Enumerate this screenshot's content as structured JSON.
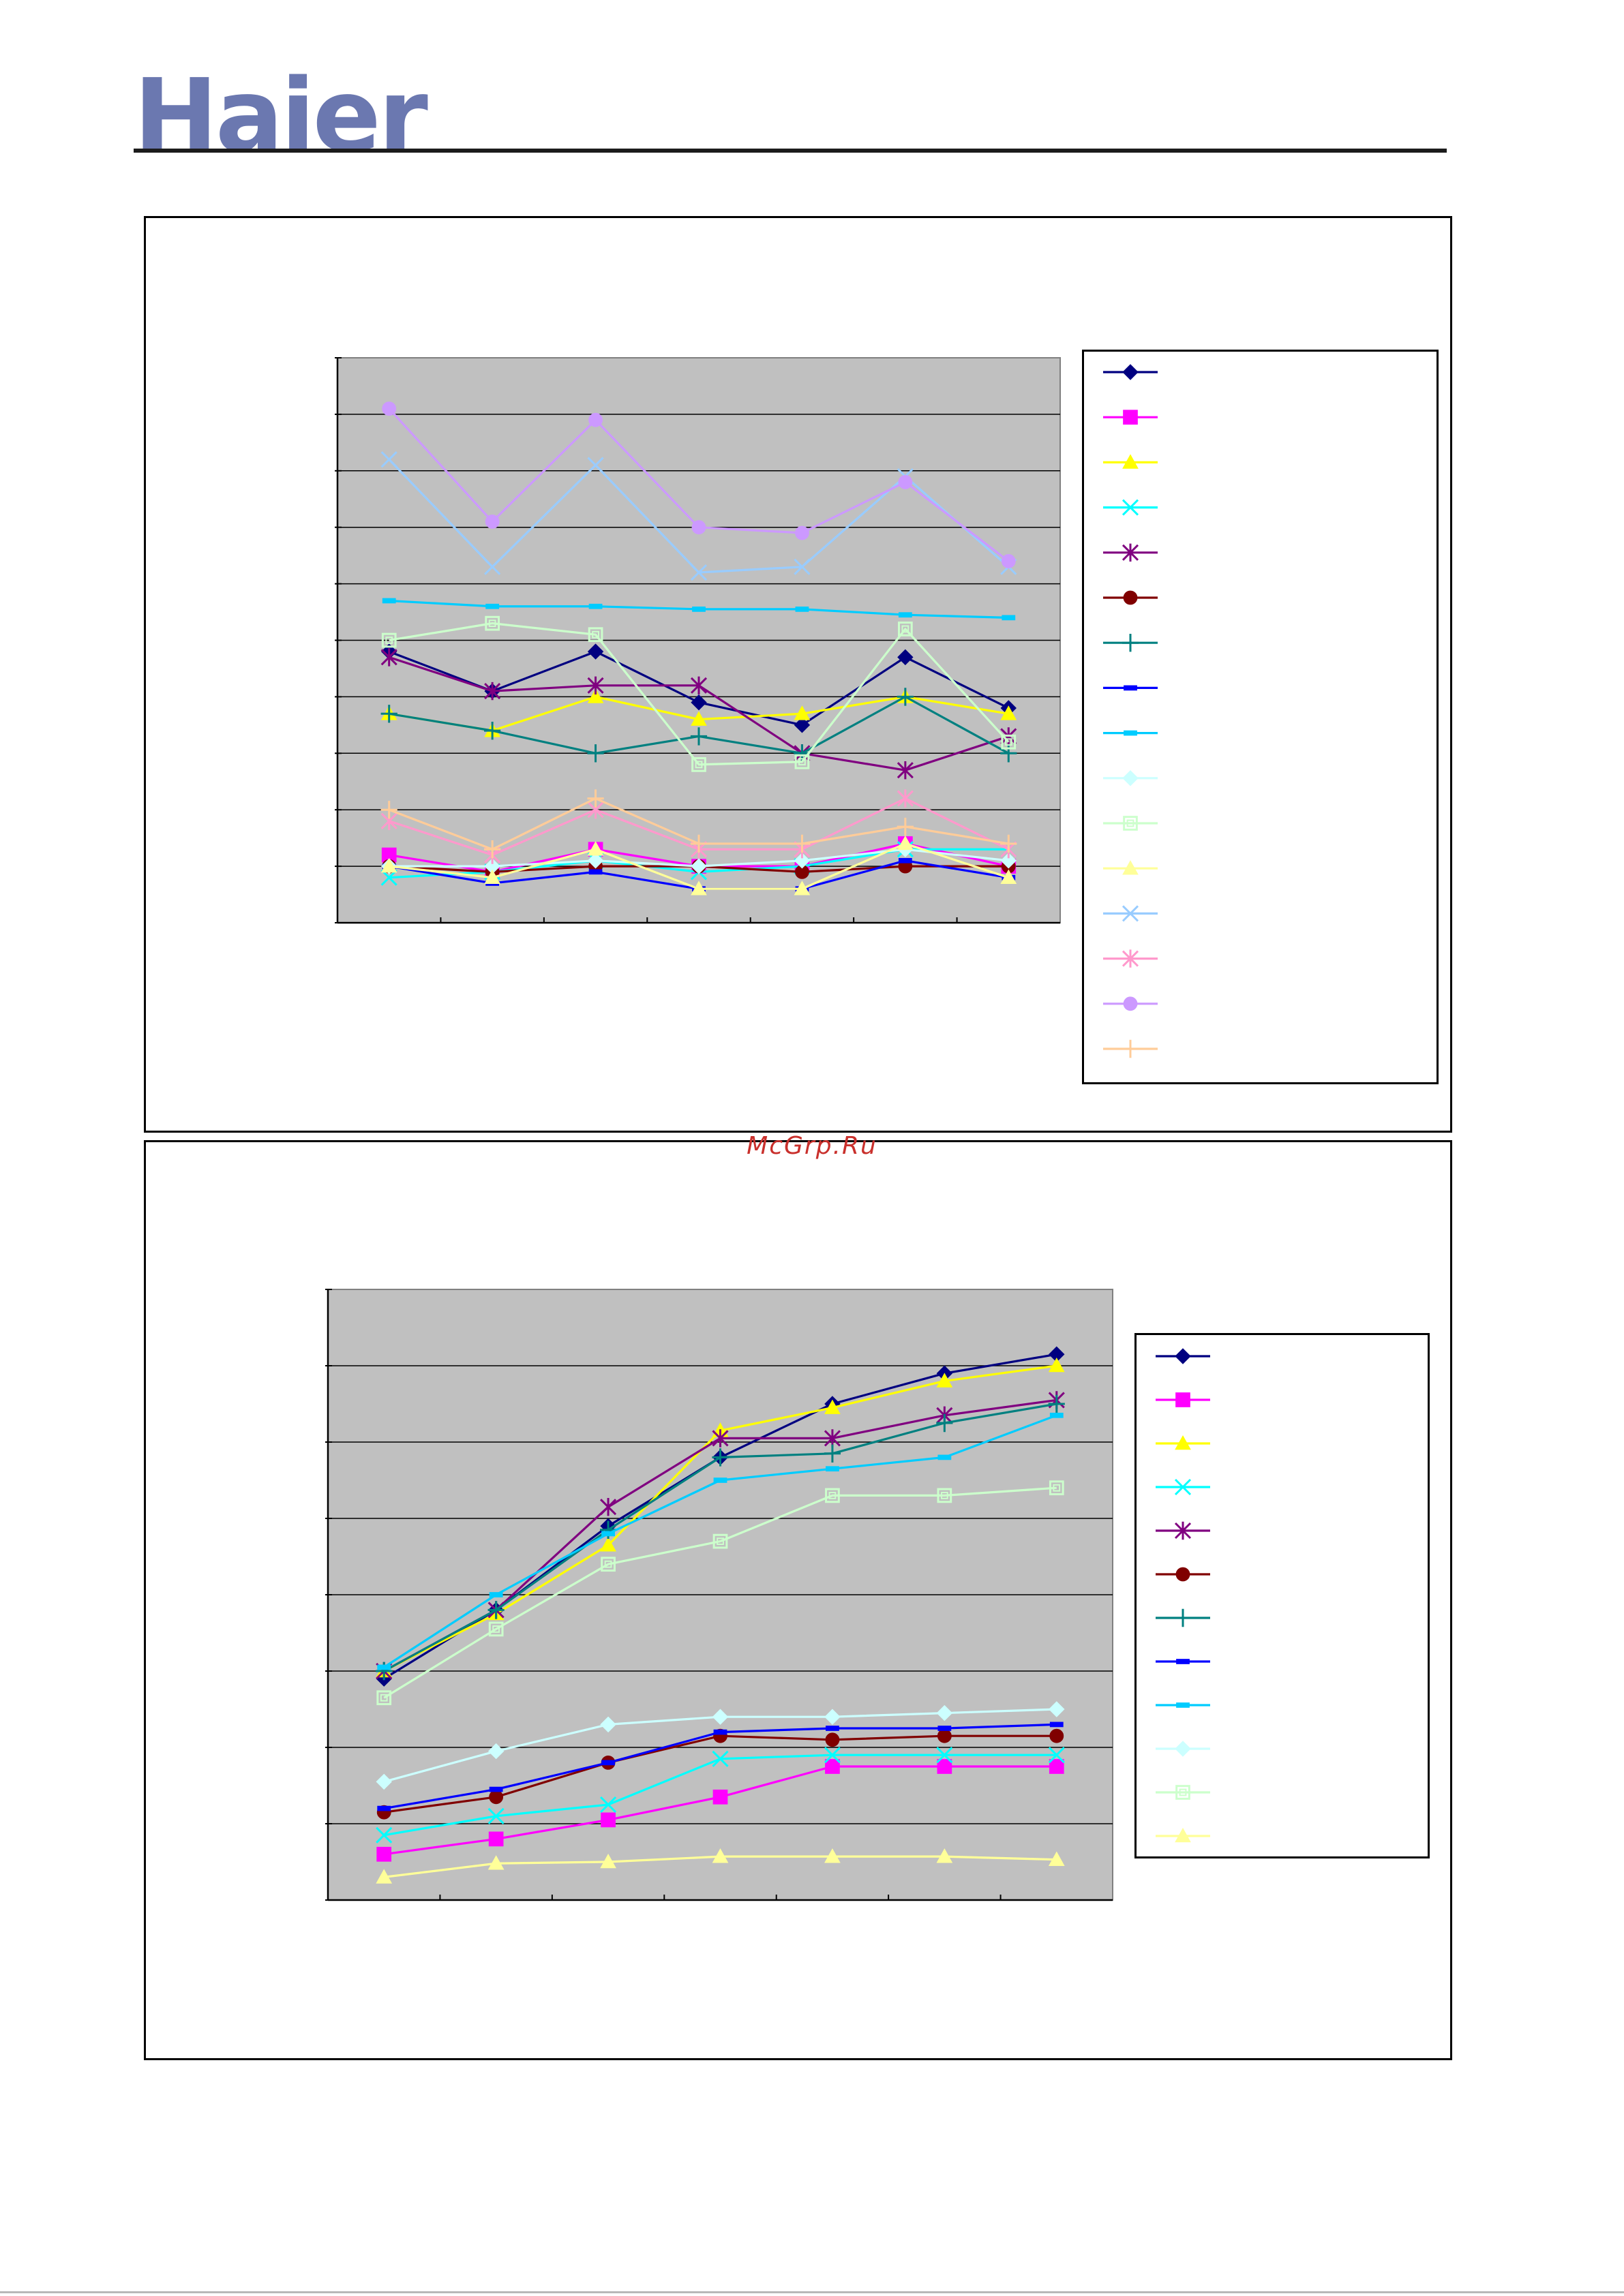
{
  "brand": {
    "logo_text": "Haier",
    "logo_color": "#6b78b0"
  },
  "watermark": "McGrp.Ru",
  "chart_data": [
    {
      "type": "line",
      "title": "",
      "xlabel": "",
      "ylabel": "",
      "plot_background": "#c0c0c0",
      "grid": true,
      "legend_position": "right",
      "ylim": [
        0,
        10
      ],
      "x": [
        1,
        2,
        3,
        4,
        5,
        6,
        7
      ],
      "series": [
        {
          "values": [
            4.8,
            4.1,
            4.8,
            3.9,
            3.5,
            4.7,
            3.8
          ],
          "color": "#000080",
          "marker": "diamond",
          "filled": true
        },
        {
          "values": [
            1.2,
            0.9,
            1.3,
            1.0,
            1.0,
            1.4,
            1.0
          ],
          "color": "#ff00ff",
          "marker": "square",
          "filled": true
        },
        {
          "values": [
            3.7,
            3.4,
            4.0,
            3.6,
            3.7,
            4.0,
            3.7
          ],
          "color": "#ffff00",
          "marker": "triangle",
          "filled": true
        },
        {
          "values": [
            0.8,
            0.9,
            1.1,
            0.9,
            1.0,
            1.3,
            1.3
          ],
          "color": "#00ffff",
          "marker": "x",
          "filled": false
        },
        {
          "values": [
            4.7,
            4.1,
            4.2,
            4.2,
            3.0,
            2.7,
            3.3
          ],
          "color": "#800080",
          "marker": "star",
          "filled": false
        },
        {
          "values": [
            1.0,
            0.9,
            1.0,
            1.0,
            0.9,
            1.0,
            1.0
          ],
          "color": "#800000",
          "marker": "circle",
          "filled": true
        },
        {
          "values": [
            3.7,
            3.4,
            3.0,
            3.3,
            3.0,
            4.0,
            3.0
          ],
          "color": "#008080",
          "marker": "plus",
          "filled": false
        },
        {
          "values": [
            1.0,
            0.7,
            0.9,
            0.6,
            0.6,
            1.1,
            0.8
          ],
          "color": "#0000ff",
          "marker": "dash",
          "filled": false
        },
        {
          "values": [
            5.7,
            5.6,
            5.6,
            5.55,
            5.55,
            5.45,
            5.4
          ],
          "color": "#00ccff",
          "marker": "dash",
          "filled": false
        },
        {
          "values": [
            1.0,
            1.0,
            1.1,
            1.0,
            1.1,
            1.3,
            1.1
          ],
          "color": "#ccffff",
          "marker": "diamond",
          "filled": true
        },
        {
          "values": [
            5.0,
            5.3,
            5.1,
            2.8,
            2.85,
            5.2,
            3.2
          ],
          "color": "#ccffcc",
          "marker": "square",
          "filled": false
        },
        {
          "values": [
            1.0,
            0.8,
            1.3,
            0.6,
            0.6,
            1.4,
            0.8
          ],
          "color": "#ffff99",
          "marker": "triangle",
          "filled": true
        },
        {
          "values": [
            8.2,
            6.3,
            8.1,
            6.2,
            6.3,
            7.9,
            6.3
          ],
          "color": "#99ccff",
          "marker": "x",
          "filled": false
        },
        {
          "values": [
            1.8,
            1.2,
            2.0,
            1.3,
            1.3,
            2.2,
            1.3
          ],
          "color": "#ff99cc",
          "marker": "star",
          "filled": false
        },
        {
          "values": [
            9.1,
            7.1,
            8.9,
            7.0,
            6.9,
            7.8,
            6.4
          ],
          "color": "#cc99ff",
          "marker": "circle",
          "filled": true
        },
        {
          "values": [
            2.0,
            1.3,
            2.2,
            1.4,
            1.4,
            1.7,
            1.4
          ],
          "color": "#ffcc99",
          "marker": "plus",
          "filled": false
        }
      ]
    },
    {
      "type": "line",
      "title": "",
      "xlabel": "",
      "ylabel": "",
      "plot_background": "#c0c0c0",
      "grid": true,
      "legend_position": "right",
      "ylim": [
        0,
        8
      ],
      "x": [
        1,
        2,
        3,
        4,
        5,
        6,
        7
      ],
      "series": [
        {
          "values": [
            2.9,
            3.8,
            4.9,
            5.8,
            6.5,
            6.9,
            7.15
          ],
          "color": "#000080",
          "marker": "diamond",
          "filled": true
        },
        {
          "values": [
            0.6,
            0.8,
            1.05,
            1.35,
            1.75,
            1.75,
            1.75
          ],
          "color": "#ff00ff",
          "marker": "square",
          "filled": true
        },
        {
          "values": [
            3.0,
            3.75,
            4.65,
            6.15,
            6.45,
            6.8,
            7.0
          ],
          "color": "#ffff00",
          "marker": "triangle",
          "filled": true
        },
        {
          "values": [
            0.85,
            1.1,
            1.25,
            1.85,
            1.9,
            1.9,
            1.9
          ],
          "color": "#00ffff",
          "marker": "x",
          "filled": false
        },
        {
          "values": [
            3.0,
            3.8,
            5.15,
            6.05,
            6.05,
            6.35,
            6.55
          ],
          "color": "#800080",
          "marker": "star",
          "filled": false
        },
        {
          "values": [
            1.15,
            1.35,
            1.8,
            2.15,
            2.1,
            2.15,
            2.15
          ],
          "color": "#800000",
          "marker": "circle",
          "filled": true
        },
        {
          "values": [
            3.0,
            3.8,
            4.85,
            5.8,
            5.85,
            6.25,
            6.5
          ],
          "color": "#008080",
          "marker": "plus",
          "filled": false
        },
        {
          "values": [
            1.2,
            1.45,
            1.8,
            2.2,
            2.25,
            2.25,
            2.3
          ],
          "color": "#0000ff",
          "marker": "dash",
          "filled": false
        },
        {
          "values": [
            3.05,
            4.0,
            4.8,
            5.5,
            5.65,
            5.8,
            6.35
          ],
          "color": "#00ccff",
          "marker": "dash",
          "filled": false
        },
        {
          "values": [
            1.55,
            1.95,
            2.3,
            2.4,
            2.4,
            2.45,
            2.5
          ],
          "color": "#ccffff",
          "marker": "diamond",
          "filled": true
        },
        {
          "values": [
            2.65,
            3.55,
            4.4,
            4.7,
            5.3,
            5.3,
            5.4
          ],
          "color": "#ccffcc",
          "marker": "square",
          "filled": false
        },
        {
          "values": [
            0.3,
            0.48,
            0.5,
            0.57,
            0.57,
            0.57,
            0.53
          ],
          "color": "#ffff99",
          "marker": "triangle",
          "filled": true
        }
      ]
    }
  ]
}
